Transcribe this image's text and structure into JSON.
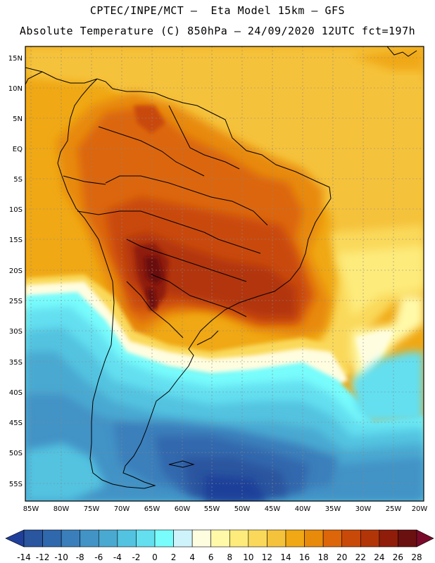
{
  "header": {
    "line1": "CPTEC/INPE/MCT –  Eta Model 15km – GFS",
    "line2": "Absolute Temperature (C) 850hPa – 24/09/2020 12UTC fct=197h"
  },
  "map": {
    "lat_labels": [
      "15N",
      "10N",
      "5N",
      "EQ",
      "5S",
      "10S",
      "15S",
      "20S",
      "25S",
      "30S",
      "35S",
      "40S",
      "45S",
      "50S",
      "55S"
    ],
    "lon_labels": [
      "85W",
      "80W",
      "75W",
      "70W",
      "65W",
      "60W",
      "55W",
      "50W",
      "45W",
      "40W",
      "35W",
      "30W",
      "25W",
      "20W"
    ]
  },
  "colorbar": {
    "labels": [
      "-14",
      "-12",
      "-10",
      "-8",
      "-6",
      "-4",
      "-2",
      "0",
      "2",
      "4",
      "6",
      "8",
      "10",
      "12",
      "14",
      "16",
      "18",
      "20",
      "22",
      "24",
      "26",
      "28"
    ],
    "colors": [
      "#1f3f9a",
      "#2a559f",
      "#3068ad",
      "#3a7fbb",
      "#4293c6",
      "#49a9d1",
      "#52c3e0",
      "#63dff0",
      "#78fcfc",
      "#cff3fb",
      "#fffde0",
      "#fff9a8",
      "#fdeb7b",
      "#fad95a",
      "#f5c23b",
      "#f0a814",
      "#e88a0a",
      "#dc6609",
      "#c94a08",
      "#b23508",
      "#8f1d0a",
      "#6b1010",
      "#7a0a2a"
    ]
  }
}
